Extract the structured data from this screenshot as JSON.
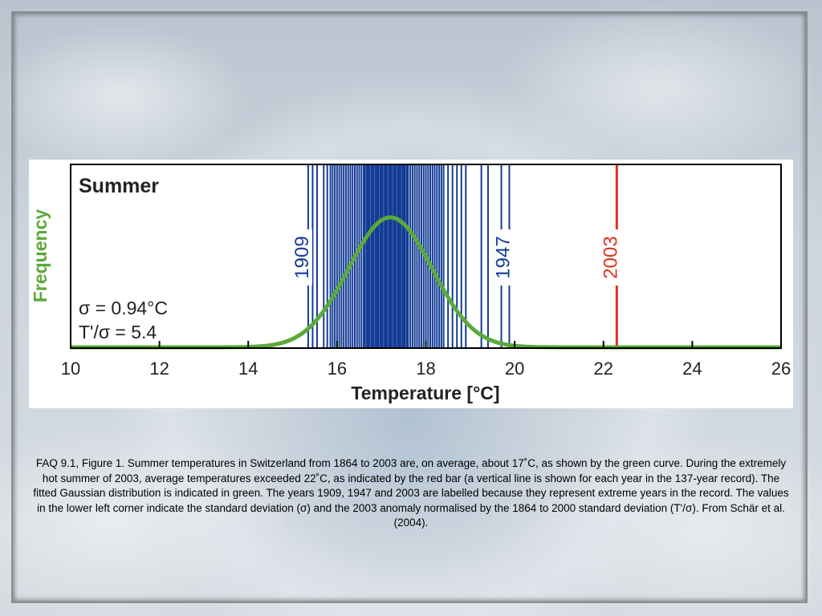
{
  "chart_data": {
    "type": "line",
    "title": "Summer",
    "xlabel": "Temperature [°C]",
    "ylabel": "Frequency",
    "xlim": [
      10,
      26
    ],
    "x_ticks": [
      "10",
      "12",
      "14",
      "16",
      "18",
      "20",
      "22",
      "24",
      "26"
    ],
    "grid": false,
    "legend": "none",
    "annotations": {
      "sigma": "σ = 0.94°C",
      "ratio": "T'/σ = 5.4"
    },
    "series": [
      {
        "kind": "gaussian",
        "mean": 17.2,
        "sd": 0.94,
        "color": "#5aaa3a"
      },
      {
        "kind": "year-lines",
        "color": "#143c96",
        "x": [
          15.35,
          15.45,
          15.55,
          15.7,
          15.78,
          15.85,
          15.9,
          15.95,
          16.0,
          16.05,
          16.1,
          16.15,
          16.2,
          16.25,
          16.3,
          16.35,
          16.4,
          16.45,
          16.5,
          16.55,
          16.6,
          16.63,
          16.67,
          16.7,
          16.73,
          16.77,
          16.8,
          16.83,
          16.87,
          16.9,
          16.93,
          16.97,
          17.0,
          17.03,
          17.07,
          17.1,
          17.13,
          17.17,
          17.2,
          17.23,
          17.27,
          17.3,
          17.33,
          17.37,
          17.4,
          17.43,
          17.47,
          17.5,
          17.53,
          17.57,
          17.6,
          17.65,
          17.7,
          17.75,
          17.8,
          17.85,
          17.9,
          17.95,
          18.0,
          18.05,
          18.1,
          18.15,
          18.2,
          18.25,
          18.3,
          18.35,
          18.4,
          18.5,
          18.6,
          18.7,
          18.8,
          18.9,
          19.25,
          19.4,
          19.7,
          19.88
        ]
      },
      {
        "kind": "highlight-line",
        "color": "#e0321e",
        "x": [
          22.3
        ]
      }
    ],
    "year_labels": [
      {
        "label": "1909",
        "x": 15.35,
        "color": "#143c96"
      },
      {
        "label": "1947",
        "x": 19.88,
        "color": "#143c96"
      },
      {
        "label": "2003",
        "x": 22.3,
        "color": "#e0321e"
      }
    ]
  },
  "caption": "FAQ 9.1, Figure 1. Summer temperatures in Switzerland from 1864 to 2003 are, on average, about 17˚C, as shown by the green curve. During the extremely hot summer of 2003, average temperatures exceeded 22˚C, as indicated by the red bar (a vertical line is shown for each year in the 137-year record). The fitted Gaussian distribution is indicated in green. The years 1909, 1947 and 2003 are labelled because they represent extreme years in the record. The values in the lower left corner indicate the standard deviation (σ) and the 2003 anomaly normalised by the 1864 to 2000 standard deviation (T'/σ). From Schär et al. (2004)."
}
